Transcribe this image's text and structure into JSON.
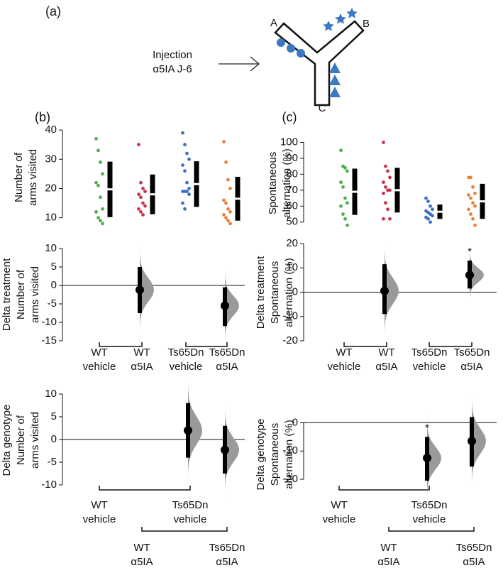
{
  "panel_labels": [
    "(a)",
    "(b)",
    "(c)"
  ],
  "diagram": {
    "injection": [
      "Injection",
      "α5IA J-6"
    ],
    "arms": [
      "A",
      "B",
      "C"
    ]
  },
  "chart_data": [
    {
      "type": "swarm",
      "y_label": [
        "Number of",
        "arms visited"
      ],
      "ylim": [
        7,
        41
      ],
      "yticks": [
        10,
        20,
        30,
        40
      ],
      "series": [
        {
          "color": "#4daf4a",
          "values": [
            37,
            33,
            29,
            25,
            22,
            21,
            17,
            13,
            12,
            10,
            9,
            8
          ],
          "mean": 19.7,
          "sd": 9.5
        },
        {
          "color": "#c8334a",
          "values": [
            35,
            22,
            20,
            19,
            18,
            17,
            15,
            14,
            13,
            12,
            11
          ],
          "mean": 18,
          "sd": 6.8
        },
        {
          "color": "#3b6fc4",
          "values": [
            39,
            35,
            32,
            30,
            28,
            26,
            22,
            20,
            19,
            19,
            19,
            18,
            15,
            13
          ],
          "mean": 21.5,
          "sd": 7.8
        },
        {
          "color": "#e8803a",
          "values": [
            36,
            29,
            23,
            20,
            16,
            15,
            13,
            12,
            11,
            10,
            9,
            8
          ],
          "mean": 16.5,
          "sd": 7.5
        }
      ]
    },
    {
      "type": "delta",
      "y_label": [
        "Delta treatment",
        "Number of",
        "arms visited"
      ],
      "ylim": [
        -15,
        10
      ],
      "yticks": [
        -15,
        -10,
        -5,
        0,
        5,
        10
      ],
      "categories": [
        [
          "WT",
          "vehicle"
        ],
        [
          "WT",
          "α5IA"
        ],
        [
          "Ts65Dn",
          "vehicle"
        ],
        [
          "Ts65Dn",
          "α5IA"
        ]
      ],
      "values": [
        null,
        -1.2,
        null,
        -5.5
      ],
      "ci": [
        null,
        [
          -7.5,
          5
        ],
        null,
        [
          -11,
          -0.5
        ]
      ],
      "annotations": [
        null,
        null,
        null,
        null
      ],
      "color": "#000000",
      "distribution_color": "#9a9a9a"
    },
    {
      "type": "delta",
      "y_label": [
        "Delta genotype",
        "Number of",
        "arms visited"
      ],
      "ylim": [
        -10,
        10
      ],
      "yticks": [
        -10,
        -5,
        0,
        5,
        10
      ],
      "categories": [
        [
          "WT",
          "vehicle"
        ],
        [
          "Ts65Dn",
          "vehicle"
        ],
        [
          "WT",
          "α5IA"
        ],
        [
          "Ts65Dn",
          "α5IA"
        ]
      ],
      "values": [
        null,
        2,
        null,
        -2.3
      ],
      "ci": [
        null,
        [
          -4,
          8
        ],
        null,
        [
          -7.5,
          3
        ]
      ],
      "annotations": [
        null,
        null,
        null,
        null
      ],
      "color": "#000000",
      "distribution_color": "#9a9a9a"
    },
    {
      "type": "swarm",
      "y_label": [
        "Spontaneous",
        "alternation (%)"
      ],
      "ylim": [
        45,
        102
      ],
      "yticks": [
        50,
        60,
        70,
        80,
        90,
        100
      ],
      "series": [
        {
          "color": "#4daf4a",
          "values": [
            95,
            85,
            84,
            82,
            75,
            72,
            65,
            62,
            60,
            55,
            52,
            48
          ],
          "mean": 69,
          "sd": 14.5
        },
        {
          "color": "#c8334a",
          "values": [
            100,
            85,
            82,
            78,
            75,
            72,
            70,
            70,
            68,
            62,
            58,
            52,
            52
          ],
          "mean": 70,
          "sd": 14
        },
        {
          "color": "#3b6fc4",
          "values": [
            65,
            63,
            60,
            58,
            57,
            56,
            55,
            54,
            53,
            52,
            50
          ],
          "mean": 56.5,
          "sd": 4.5
        },
        {
          "color": "#e8803a",
          "values": [
            78,
            78,
            72,
            68,
            67,
            65,
            62,
            60,
            58,
            55,
            52,
            48
          ],
          "mean": 63,
          "sd": 11
        }
      ]
    },
    {
      "type": "delta",
      "y_label": [
        "Delta treatment",
        "Spontaneous",
        "alternation (%)"
      ],
      "ylim": [
        -20,
        20
      ],
      "yticks": [
        -20,
        -10,
        0,
        10,
        20
      ],
      "categories": [
        [
          "WT",
          "vehicle"
        ],
        [
          "WT",
          "α5IA"
        ],
        [
          "Ts65Dn",
          "vehicle"
        ],
        [
          "Ts65Dn",
          "α5IA"
        ]
      ],
      "values": [
        null,
        0.5,
        null,
        7
      ],
      "ci": [
        null,
        [
          -9,
          11.5
        ],
        null,
        [
          1.5,
          13
        ]
      ],
      "annotations": [
        null,
        null,
        null,
        "*"
      ],
      "color": "#000000",
      "distribution_color": "#9a9a9a"
    },
    {
      "type": "delta",
      "y_label": [
        "Delta genotype",
        "Spontaneous",
        "alternation (%)"
      ],
      "ylim": [
        -22,
        5
      ],
      "yticks": [
        -20,
        -10,
        0
      ],
      "categories": [
        [
          "WT",
          "vehicle"
        ],
        [
          "Ts65Dn",
          "vehicle"
        ],
        [
          "WT",
          "α5IA"
        ],
        [
          "Ts65Dn",
          "α5IA"
        ]
      ],
      "values": [
        null,
        -12.5,
        null,
        -6.5
      ],
      "ci": [
        null,
        [
          -20.5,
          -5
        ],
        null,
        [
          -15.5,
          2
        ]
      ],
      "annotations": [
        null,
        "*",
        null,
        null
      ],
      "color": "#000000",
      "distribution_color": "#9a9a9a"
    }
  ]
}
